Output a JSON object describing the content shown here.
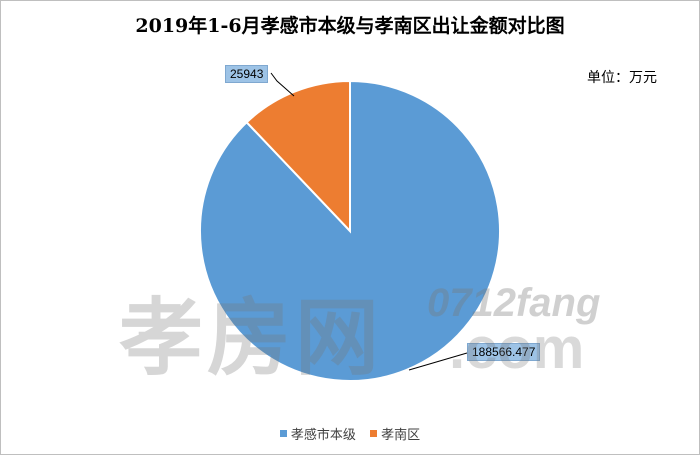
{
  "chart_data": {
    "type": "pie",
    "title": "2019年1-6月孝感市本级与孝南区出让金额对比图",
    "unit_label": "单位：万元",
    "categories": [
      "孝感市本级",
      "孝南区"
    ],
    "values": [
      188566.477,
      25943
    ],
    "value_labels": [
      "188566.477",
      "25943"
    ],
    "colors": [
      "#5b9bd5",
      "#ed7d31"
    ],
    "legend_position": "bottom"
  },
  "watermark": {
    "cn": "孝房网",
    "en": "0712fang",
    "suffix": ".com"
  }
}
